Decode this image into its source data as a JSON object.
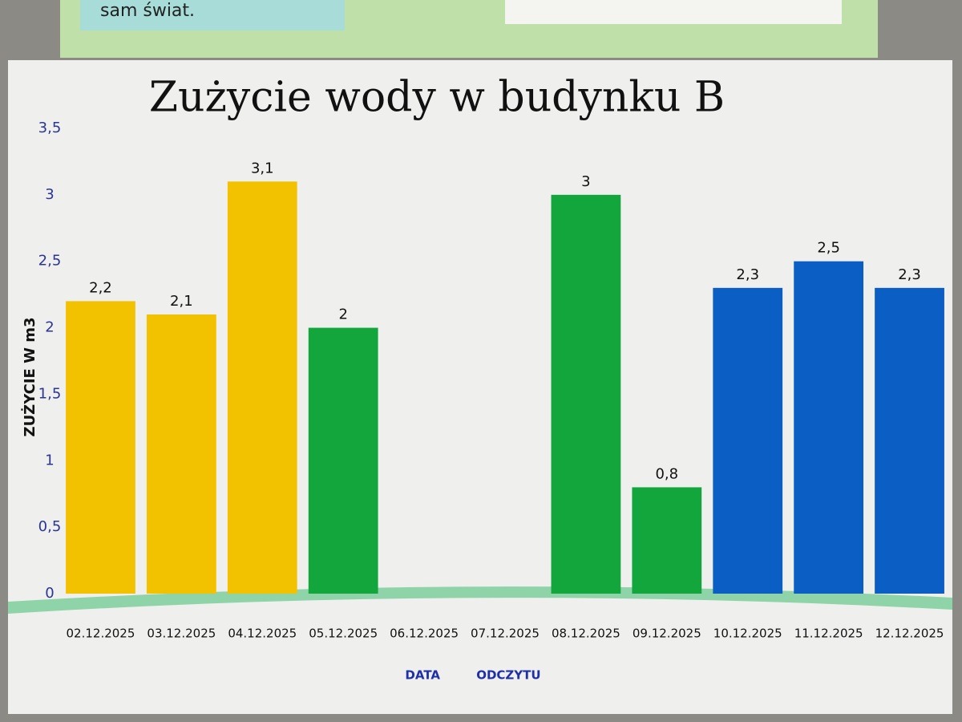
{
  "note": "sam świat.",
  "chart_data": {
    "type": "bar",
    "title": "Zużycie wody w budynku B",
    "y_label": "ZUŻYCIE W m3",
    "x_label": "DATA ODCZYTU",
    "categories": [
      "02.12.2025",
      "03.12.2025",
      "04.12.2025",
      "05.12.2025",
      "06.12.2025",
      "07.12.2025",
      "08.12.2025",
      "09.12.2025",
      "10.12.2025",
      "11.12.2025",
      "12.12.2025"
    ],
    "values": [
      2.2,
      2.1,
      3.1,
      2,
      null,
      null,
      3,
      0.8,
      2.3,
      2.5,
      2.3
    ],
    "value_labels": [
      "2,2",
      "2,1",
      "3,1",
      "2",
      null,
      null,
      "3",
      "0,8",
      "2,3",
      "2,5",
      "2,3"
    ],
    "colors": [
      "#f2c200",
      "#f2c200",
      "#f2c200",
      "#12a63d",
      null,
      null,
      "#12a63d",
      "#12a63d",
      "#0b5fc4",
      "#0b5fc4",
      "#0b5fc4"
    ],
    "ylim": [
      0,
      3.5
    ],
    "yticks": [
      0,
      {
        "value": 0.5,
        "label": "0,5"
      },
      1,
      {
        "value": 1.5,
        "label": "1,5"
      },
      2,
      {
        "value": 2.5,
        "label": "2,5"
      },
      3,
      {
        "value": 3.5,
        "label": "3,5"
      }
    ],
    "grid": false
  }
}
